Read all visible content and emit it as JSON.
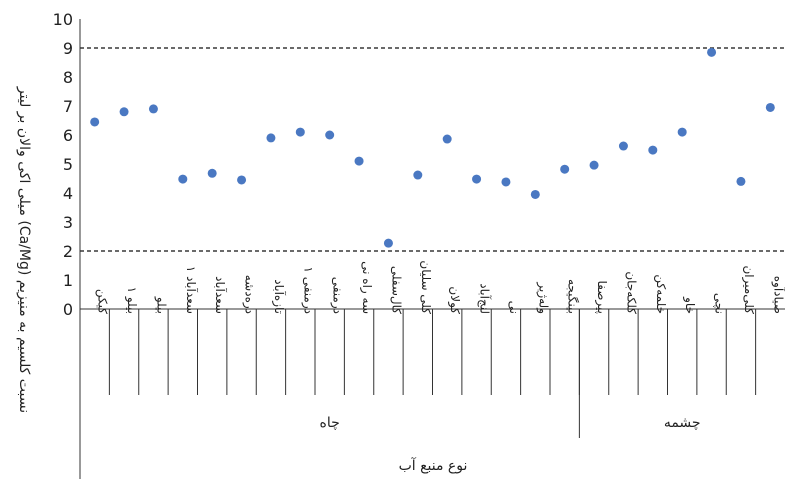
{
  "chart_data": {
    "type": "scatter",
    "ylabel": "نسبت کلسیم به منیزیم (Ca/Mg) میلی اکی والان بر لیتر",
    "xlabel": "نوع منبع آب",
    "ylim": [
      0,
      10
    ],
    "yticks": [
      "0",
      "1",
      "2",
      "3",
      "4",
      "5",
      "6",
      "7",
      "8",
      "9",
      "10"
    ],
    "reference_lines": [
      9,
      2
    ],
    "point_color": "#4a78c2",
    "grid": false,
    "categories": [
      "کیکن",
      "بیلو ۱",
      "بیلو",
      "سعدآباد ۱",
      "سعدآباد",
      "دره‌دشه",
      "تازه‌آباد",
      "درمنفی ۱",
      "درمنفی",
      "سه راه نی",
      "کال‌سفلی",
      "کلی سلیان",
      "کولان",
      "لنج‌آباد",
      "نی",
      "وله‌ژیر",
      "بینگیجه",
      "پیرصفا",
      "کلکه‌جان",
      "خلمه‌کن",
      "خاو",
      "نچی",
      "کلی‌میران",
      "صیادآوه"
    ],
    "values": [
      6.45,
      6.8,
      6.9,
      4.48,
      4.68,
      4.45,
      5.9,
      6.1,
      6.0,
      5.1,
      2.27,
      4.62,
      5.86,
      4.48,
      4.38,
      3.95,
      4.82,
      4.96,
      5.62,
      5.48,
      6.1,
      8.85,
      4.4,
      6.95
    ],
    "groups": [
      {
        "label": "چاه",
        "count": 17
      },
      {
        "label": "چشمه",
        "count": 7
      }
    ]
  }
}
